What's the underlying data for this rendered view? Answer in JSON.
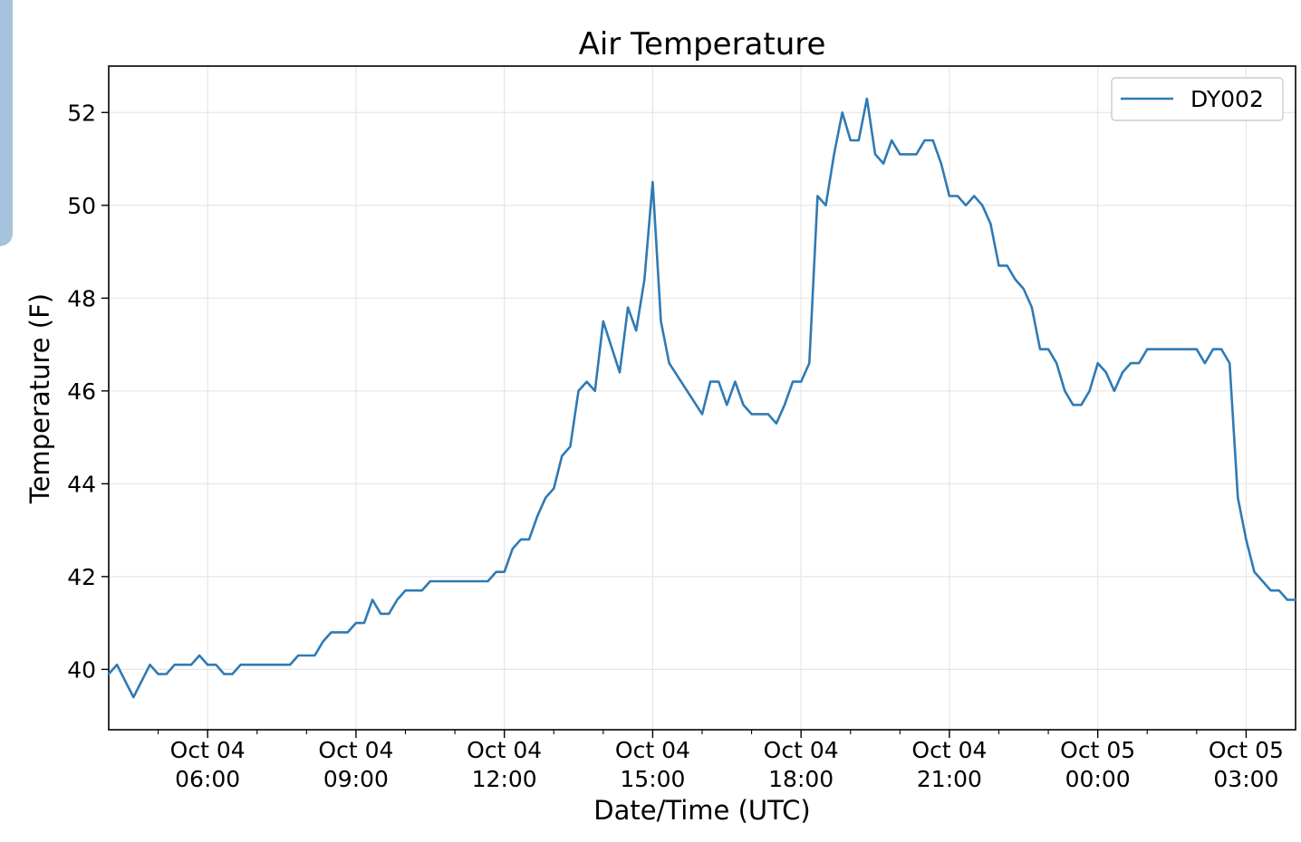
{
  "chart_data": {
    "type": "line",
    "title": "Air Temperature",
    "xlabel": "Date/Time (UTC)",
    "ylabel": "Temperature (F)",
    "ylim": [
      38.7,
      53.0
    ],
    "xlim": [
      "2018-10-04 04:00",
      "2018-10-05 04:00"
    ],
    "yticks": [
      40,
      42,
      44,
      46,
      48,
      50,
      52
    ],
    "xticks": [
      {
        "time": "2018-10-04 06:00",
        "line1": "Oct 04",
        "line2": "06:00"
      },
      {
        "time": "2018-10-04 09:00",
        "line1": "Oct 04",
        "line2": "09:00"
      },
      {
        "time": "2018-10-04 12:00",
        "line1": "Oct 04",
        "line2": "12:00"
      },
      {
        "time": "2018-10-04 15:00",
        "line1": "Oct 04",
        "line2": "15:00"
      },
      {
        "time": "2018-10-04 18:00",
        "line1": "Oct 04",
        "line2": "18:00"
      },
      {
        "time": "2018-10-04 21:00",
        "line1": "Oct 04",
        "line2": "21:00"
      },
      {
        "time": "2018-10-05 00:00",
        "line1": "Oct 05",
        "line2": "00:00"
      },
      {
        "time": "2018-10-05 03:00",
        "line1": "Oct 05",
        "line2": "03:00"
      }
    ],
    "minor_xticks": [
      "2018-10-04 05:00",
      "2018-10-04 07:00",
      "2018-10-04 08:00",
      "2018-10-04 10:00",
      "2018-10-04 11:00",
      "2018-10-04 13:00",
      "2018-10-04 14:00",
      "2018-10-04 16:00",
      "2018-10-04 17:00",
      "2018-10-04 19:00",
      "2018-10-04 20:00",
      "2018-10-04 22:00",
      "2018-10-04 23:00",
      "2018-10-05 01:00",
      "2018-10-05 02:00"
    ],
    "grid": true,
    "legend_position": "upper right",
    "series": [
      {
        "name": "DY002",
        "color": "#2f7ab4",
        "points": [
          [
            "2018-10-04 04:00",
            39.9
          ],
          [
            "2018-10-04 04:10",
            40.1
          ],
          [
            "2018-10-04 04:30",
            39.4
          ],
          [
            "2018-10-04 04:50",
            40.1
          ],
          [
            "2018-10-04 05:00",
            39.9
          ],
          [
            "2018-10-04 05:10",
            39.9
          ],
          [
            "2018-10-04 05:20",
            40.1
          ],
          [
            "2018-10-04 05:40",
            40.1
          ],
          [
            "2018-10-04 05:50",
            40.3
          ],
          [
            "2018-10-04 06:00",
            40.1
          ],
          [
            "2018-10-04 06:10",
            40.1
          ],
          [
            "2018-10-04 06:20",
            39.9
          ],
          [
            "2018-10-04 06:30",
            39.9
          ],
          [
            "2018-10-04 06:40",
            40.1
          ],
          [
            "2018-10-04 07:40",
            40.1
          ],
          [
            "2018-10-04 07:50",
            40.3
          ],
          [
            "2018-10-04 08:10",
            40.3
          ],
          [
            "2018-10-04 08:20",
            40.6
          ],
          [
            "2018-10-04 08:30",
            40.8
          ],
          [
            "2018-10-04 08:50",
            40.8
          ],
          [
            "2018-10-04 09:00",
            41.0
          ],
          [
            "2018-10-04 09:10",
            41.0
          ],
          [
            "2018-10-04 09:20",
            41.5
          ],
          [
            "2018-10-04 09:30",
            41.2
          ],
          [
            "2018-10-04 09:40",
            41.2
          ],
          [
            "2018-10-04 09:50",
            41.5
          ],
          [
            "2018-10-04 10:00",
            41.7
          ],
          [
            "2018-10-04 10:20",
            41.7
          ],
          [
            "2018-10-04 10:30",
            41.9
          ],
          [
            "2018-10-04 11:40",
            41.9
          ],
          [
            "2018-10-04 11:50",
            42.1
          ],
          [
            "2018-10-04 12:00",
            42.1
          ],
          [
            "2018-10-04 12:10",
            42.6
          ],
          [
            "2018-10-04 12:20",
            42.8
          ],
          [
            "2018-10-04 12:30",
            42.8
          ],
          [
            "2018-10-04 12:40",
            43.3
          ],
          [
            "2018-10-04 12:50",
            43.7
          ],
          [
            "2018-10-04 13:00",
            43.9
          ],
          [
            "2018-10-04 13:10",
            44.6
          ],
          [
            "2018-10-04 13:20",
            44.8
          ],
          [
            "2018-10-04 13:30",
            46.0
          ],
          [
            "2018-10-04 13:40",
            46.2
          ],
          [
            "2018-10-04 13:50",
            46.0
          ],
          [
            "2018-10-04 14:00",
            47.5
          ],
          [
            "2018-10-04 14:20",
            46.4
          ],
          [
            "2018-10-04 14:30",
            47.8
          ],
          [
            "2018-10-04 14:40",
            47.3
          ],
          [
            "2018-10-04 14:50",
            48.4
          ],
          [
            "2018-10-04 15:00",
            50.5
          ],
          [
            "2018-10-04 15:10",
            47.5
          ],
          [
            "2018-10-04 15:20",
            46.6
          ],
          [
            "2018-10-04 16:00",
            45.5
          ],
          [
            "2018-10-04 16:10",
            46.2
          ],
          [
            "2018-10-04 16:20",
            46.2
          ],
          [
            "2018-10-04 16:30",
            45.7
          ],
          [
            "2018-10-04 16:40",
            46.2
          ],
          [
            "2018-10-04 16:50",
            45.7
          ],
          [
            "2018-10-04 17:00",
            45.5
          ],
          [
            "2018-10-04 17:20",
            45.5
          ],
          [
            "2018-10-04 17:30",
            45.3
          ],
          [
            "2018-10-04 17:40",
            45.7
          ],
          [
            "2018-10-04 17:50",
            46.2
          ],
          [
            "2018-10-04 18:00",
            46.2
          ],
          [
            "2018-10-04 18:10",
            46.6
          ],
          [
            "2018-10-04 18:20",
            50.2
          ],
          [
            "2018-10-04 18:30",
            50.0
          ],
          [
            "2018-10-04 18:40",
            51.1
          ],
          [
            "2018-10-04 18:50",
            52.0
          ],
          [
            "2018-10-04 19:00",
            51.4
          ],
          [
            "2018-10-04 19:10",
            51.4
          ],
          [
            "2018-10-04 19:20",
            52.3
          ],
          [
            "2018-10-04 19:30",
            51.1
          ],
          [
            "2018-10-04 19:40",
            50.9
          ],
          [
            "2018-10-04 19:50",
            51.4
          ],
          [
            "2018-10-04 20:00",
            51.1
          ],
          [
            "2018-10-04 20:20",
            51.1
          ],
          [
            "2018-10-04 20:30",
            51.4
          ],
          [
            "2018-10-04 20:40",
            51.4
          ],
          [
            "2018-10-04 20:50",
            50.9
          ],
          [
            "2018-10-04 21:00",
            50.2
          ],
          [
            "2018-10-04 21:10",
            50.2
          ],
          [
            "2018-10-04 21:20",
            50.0
          ],
          [
            "2018-10-04 21:30",
            50.2
          ],
          [
            "2018-10-04 21:40",
            50.0
          ],
          [
            "2018-10-04 21:50",
            49.6
          ],
          [
            "2018-10-04 22:00",
            48.7
          ],
          [
            "2018-10-04 22:10",
            48.7
          ],
          [
            "2018-10-04 22:20",
            48.4
          ],
          [
            "2018-10-04 22:30",
            48.2
          ],
          [
            "2018-10-04 22:40",
            47.8
          ],
          [
            "2018-10-04 22:50",
            46.9
          ],
          [
            "2018-10-04 23:00",
            46.9
          ],
          [
            "2018-10-04 23:10",
            46.6
          ],
          [
            "2018-10-04 23:20",
            46.0
          ],
          [
            "2018-10-04 23:30",
            45.7
          ],
          [
            "2018-10-04 23:40",
            45.7
          ],
          [
            "2018-10-04 23:50",
            46.0
          ],
          [
            "2018-10-05 00:00",
            46.6
          ],
          [
            "2018-10-05 00:10",
            46.4
          ],
          [
            "2018-10-05 00:20",
            46.0
          ],
          [
            "2018-10-05 00:30",
            46.4
          ],
          [
            "2018-10-05 00:40",
            46.6
          ],
          [
            "2018-10-05 00:50",
            46.6
          ],
          [
            "2018-10-05 01:00",
            46.9
          ],
          [
            "2018-10-05 02:00",
            46.9
          ],
          [
            "2018-10-05 02:10",
            46.6
          ],
          [
            "2018-10-05 02:20",
            46.9
          ],
          [
            "2018-10-05 02:30",
            46.9
          ],
          [
            "2018-10-05 02:40",
            46.6
          ],
          [
            "2018-10-05 02:50",
            43.7
          ],
          [
            "2018-10-05 03:00",
            42.8
          ],
          [
            "2018-10-05 03:10",
            42.1
          ],
          [
            "2018-10-05 03:30",
            41.7
          ],
          [
            "2018-10-05 03:40",
            41.7
          ],
          [
            "2018-10-05 03:50",
            41.5
          ],
          [
            "2018-10-05 04:00",
            41.5
          ]
        ]
      }
    ]
  },
  "colors": {
    "line": "#2f7ab4",
    "grid": "#e6e6e6",
    "side_tab": "#a5c3dc"
  }
}
